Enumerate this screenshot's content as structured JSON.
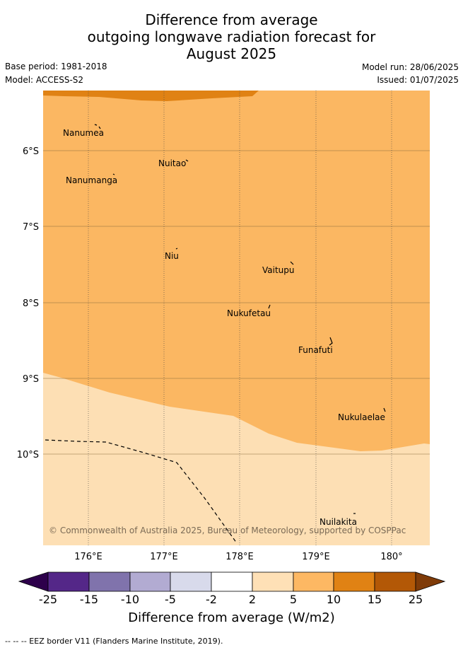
{
  "title": {
    "line1": "Difference from average",
    "line2": "outgoing longwave radiation forecast for",
    "line3": "August 2025"
  },
  "meta": {
    "base_period": "Base period: 1981-2018",
    "model": "Model: ACCESS-S2",
    "model_run": "Model run: 28/06/2025",
    "issued": "Issued: 01/07/2025"
  },
  "map": {
    "lat_labels": [
      "6°S",
      "7°S",
      "8°S",
      "9°S",
      "10°S"
    ],
    "lon_labels": [
      "176°E",
      "177°E",
      "178°E",
      "179°E",
      "180°"
    ],
    "places": [
      "Nanumea",
      "Nuitao",
      "Nanumanga",
      "Niu",
      "Vaitupu",
      "Nukufetau",
      "Funafuti",
      "Nukulaelae",
      "Nuilakita"
    ],
    "copyright": "© Commonwealth of Australia 2025, Bureau of Meteorology, supported by COSPPac",
    "fill_colors": {
      "band_5_10": "#fbb762",
      "band_2_5": "#fddfb4",
      "band_10_15": "#e08214"
    }
  },
  "colorbar": {
    "ticks": [
      "-25",
      "-15",
      "-10",
      "-5",
      "-2",
      "2",
      "5",
      "10",
      "15",
      "25"
    ],
    "colors": [
      "#2d004b",
      "#542788",
      "#8073ac",
      "#b2abd2",
      "#d8daeb",
      "#ffffff",
      "#fee0b6",
      "#fdb863",
      "#e08214",
      "#b35806",
      "#7f3b08"
    ],
    "label": "Difference from average (W/m2)"
  },
  "footnote": "-- -- -- EEZ border V11 (Flanders Marine Institute, 2019)."
}
